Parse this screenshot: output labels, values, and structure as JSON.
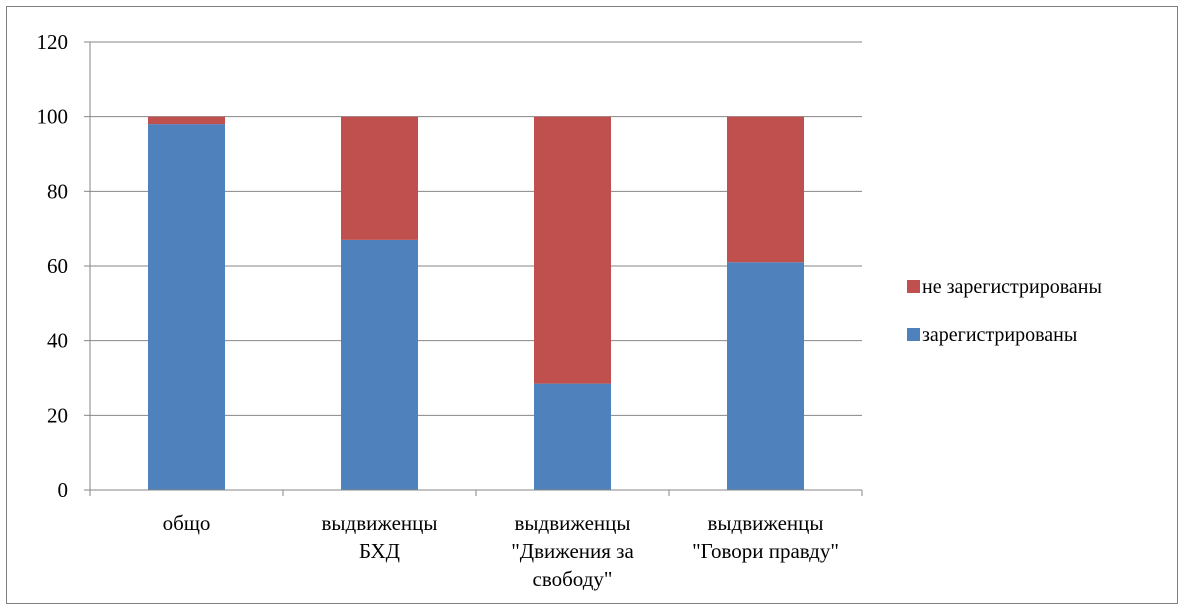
{
  "chart_data": {
    "type": "bar",
    "stacked": true,
    "categories": [
      [
        "общо"
      ],
      [
        "выдвиженцы",
        "БХД"
      ],
      [
        "выдвиженцы",
        "\"Движения за",
        "свободу\""
      ],
      [
        "выдвиженцы",
        "\"Говори правду\""
      ]
    ],
    "series": [
      {
        "name": "зарегистрированы",
        "color": "#4f81bd",
        "values": [
          98,
          67,
          28.5,
          61
        ]
      },
      {
        "name": "не зарегистрированы",
        "color": "#c0504d",
        "values": [
          2,
          33,
          71.5,
          39
        ]
      }
    ],
    "ylim": [
      0,
      120
    ],
    "yticks": [
      0,
      20,
      40,
      60,
      80,
      100,
      120
    ],
    "grid": true,
    "legend_position": "right",
    "legend_order": [
      1,
      0
    ]
  }
}
